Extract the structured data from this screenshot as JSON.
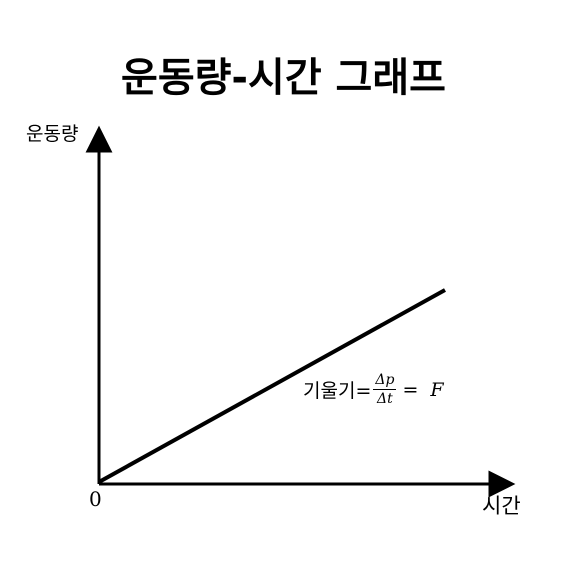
{
  "title": "운동량-시간 그래프",
  "axes": {
    "y_label": "운동량",
    "x_label": "시간",
    "origin_label": "0"
  },
  "annotation": {
    "prefix": "기울기=",
    "numerator": "Δp",
    "denominator": "Δt",
    "equals": "=",
    "result": "F"
  },
  "colors": {
    "line": "#000000",
    "background": "#ffffff"
  }
}
